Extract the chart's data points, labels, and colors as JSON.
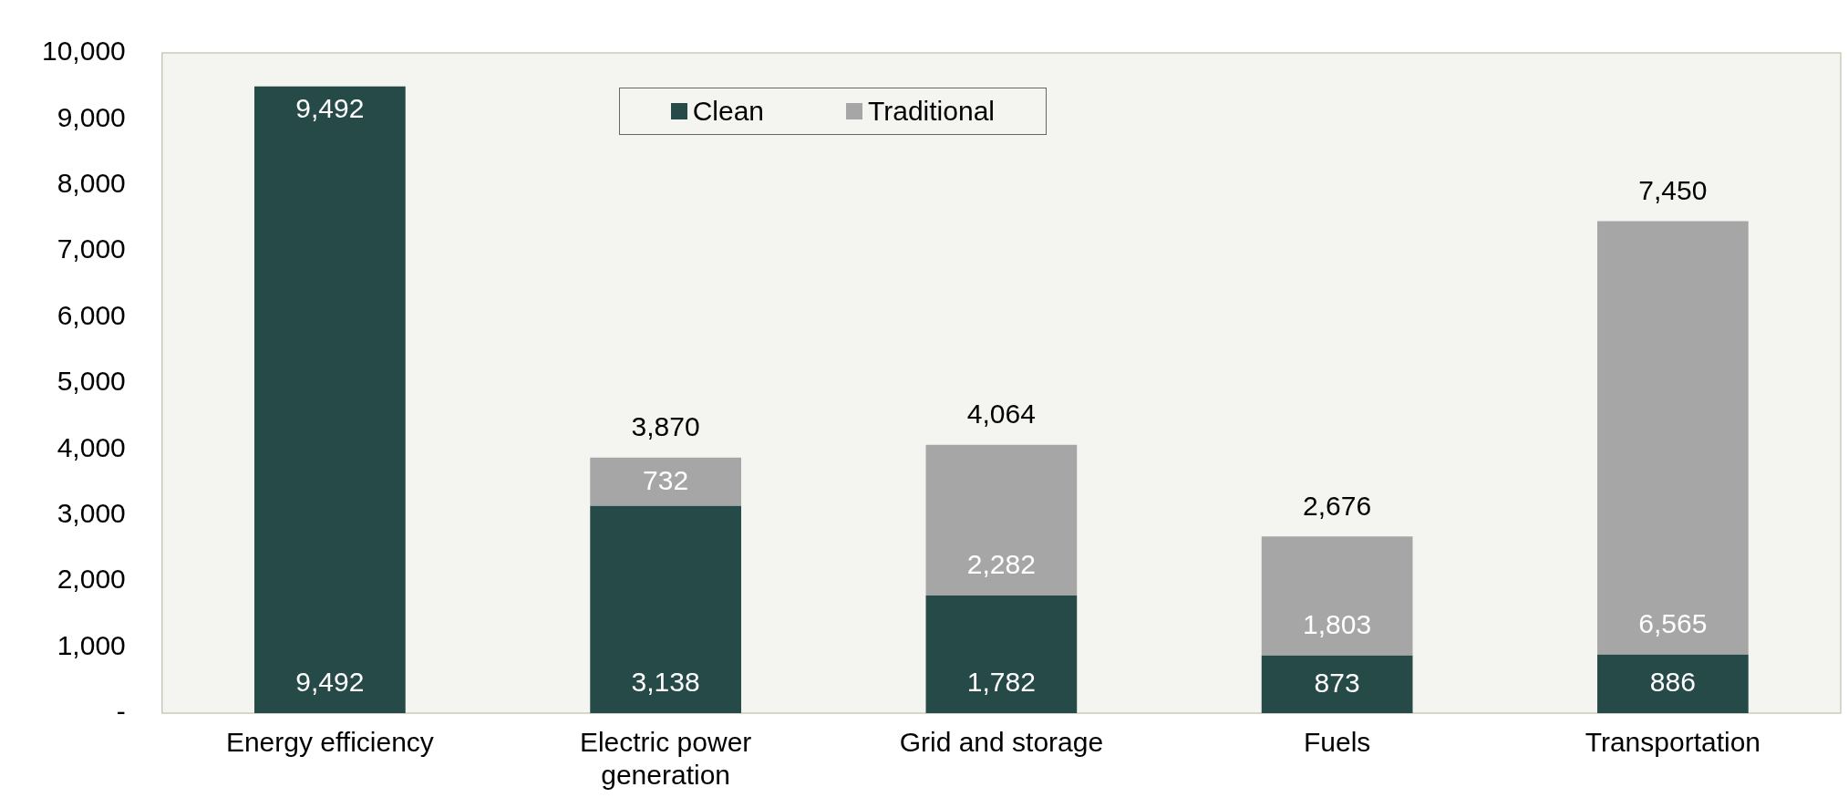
{
  "chart_data": {
    "type": "bar",
    "stacked": true,
    "categories": [
      "Energy efficiency",
      "Electric power generation",
      "Grid and storage",
      "Fuels",
      "Transportation"
    ],
    "series": [
      {
        "name": "Clean",
        "color": "#254a47",
        "values": [
          9492,
          3138,
          1782,
          873,
          886
        ],
        "value_labels": [
          "9,492",
          "3,138",
          "1,782",
          "873",
          "886"
        ]
      },
      {
        "name": "Traditional",
        "color": "#a6a6a6",
        "values": [
          0,
          732,
          2282,
          1803,
          6565
        ],
        "value_labels": [
          null,
          "732",
          "2,282",
          "1,803",
          "6,565"
        ]
      }
    ],
    "totals": [
      "9,492",
      "3,870",
      "4,064",
      "2,676",
      "7,450"
    ],
    "ylim": [
      0,
      10000
    ],
    "yticks": [
      {
        "value": 0,
        "label": "-"
      },
      {
        "value": 1000,
        "label": "1,000"
      },
      {
        "value": 2000,
        "label": "2,000"
      },
      {
        "value": 3000,
        "label": "3,000"
      },
      {
        "value": 4000,
        "label": "4,000"
      },
      {
        "value": 5000,
        "label": "5,000"
      },
      {
        "value": 6000,
        "label": "6,000"
      },
      {
        "value": 7000,
        "label": "7,000"
      },
      {
        "value": 8000,
        "label": "8,000"
      },
      {
        "value": 9000,
        "label": "9,000"
      },
      {
        "value": 10000,
        "label": "10,000"
      }
    ],
    "grid": false,
    "legend": "top"
  }
}
